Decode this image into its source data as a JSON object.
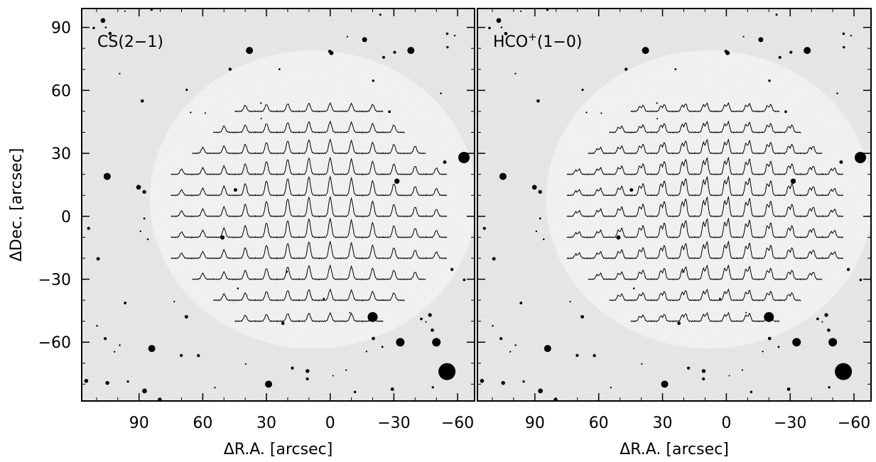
{
  "chart_data": [
    {
      "type": "image",
      "label": [
        "CS(2−1)"
      ],
      "xlabel": "ΔR.A. [arcsec]",
      "ylabel": "ΔDec. [arcsec]",
      "xlim": [
        117,
        -68
      ],
      "ylim": [
        -88,
        99
      ],
      "xticks": [
        90,
        60,
        30,
        0,
        {
          "value": -30,
          "label": "−30"
        },
        {
          "value": -60,
          "label": "−60"
        }
      ],
      "yticks": [
        90,
        60,
        30,
        0,
        {
          "value": -30,
          "label": "−30"
        },
        {
          "value": -60,
          "label": "−60"
        }
      ]
    },
    {
      "type": "image",
      "label": [
        "HCO",
        "+",
        "(1−0)"
      ],
      "xlabel": "ΔR.A. [arcsec]",
      "xlim": [
        117,
        -68
      ],
      "ylim": [
        -88,
        99
      ],
      "xticks": [
        90,
        60,
        30,
        0,
        {
          "value": -30,
          "label": "−30"
        },
        {
          "value": -60,
          "label": "−60"
        }
      ],
      "yticks": [
        90,
        60,
        30,
        0,
        {
          "value": -30,
          "label": "−30"
        },
        {
          "value": -60,
          "label": "−60"
        }
      ]
    }
  ]
}
